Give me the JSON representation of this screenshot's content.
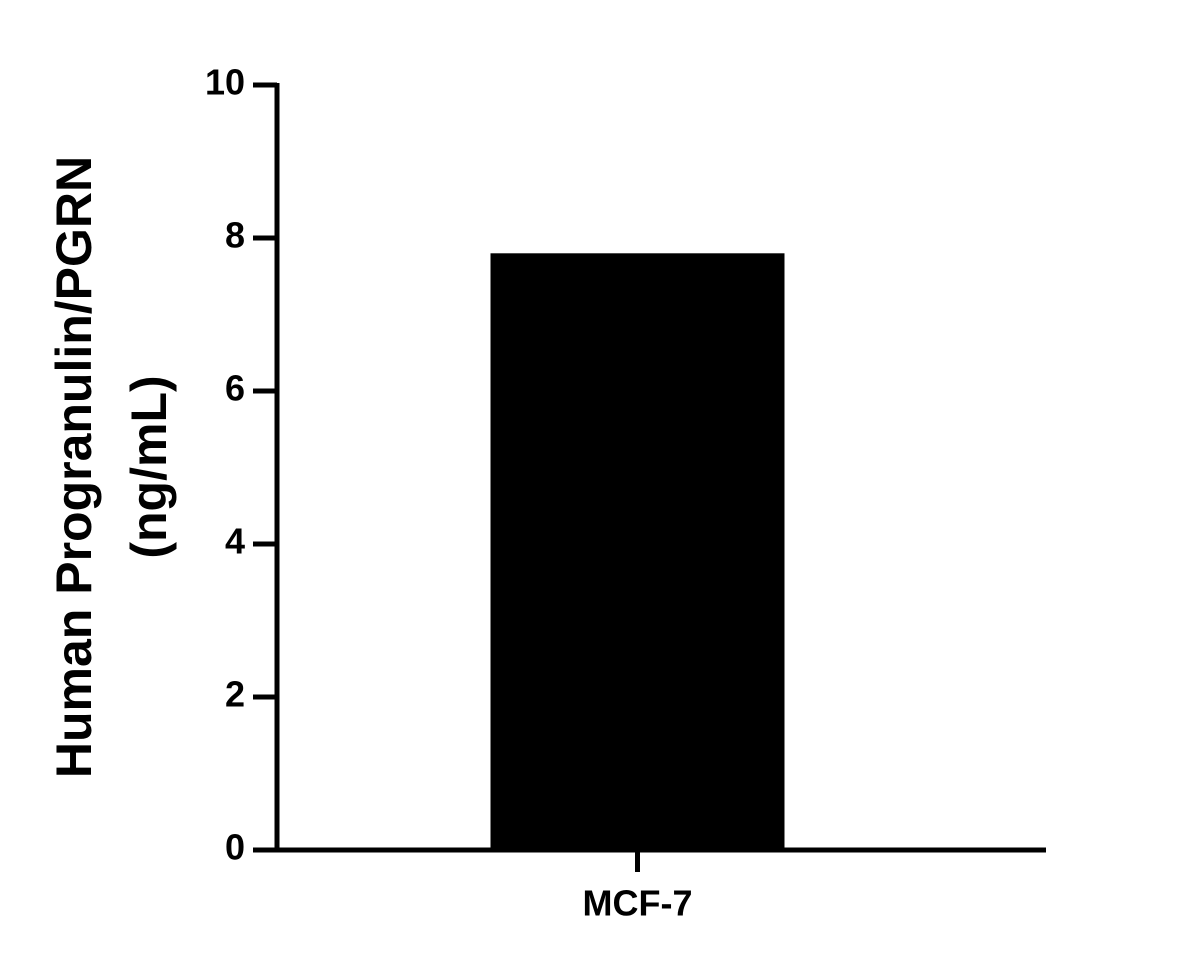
{
  "chart_data": {
    "type": "bar",
    "ylabel": [
      "Human Progranulin/PGRN",
      "(ng/mL)"
    ],
    "categories": [
      "MCF-7"
    ],
    "values": [
      7.8
    ],
    "color": "#000000",
    "ylim": [
      0,
      10
    ],
    "yticks": [
      0,
      2,
      4,
      6,
      8,
      10
    ]
  }
}
